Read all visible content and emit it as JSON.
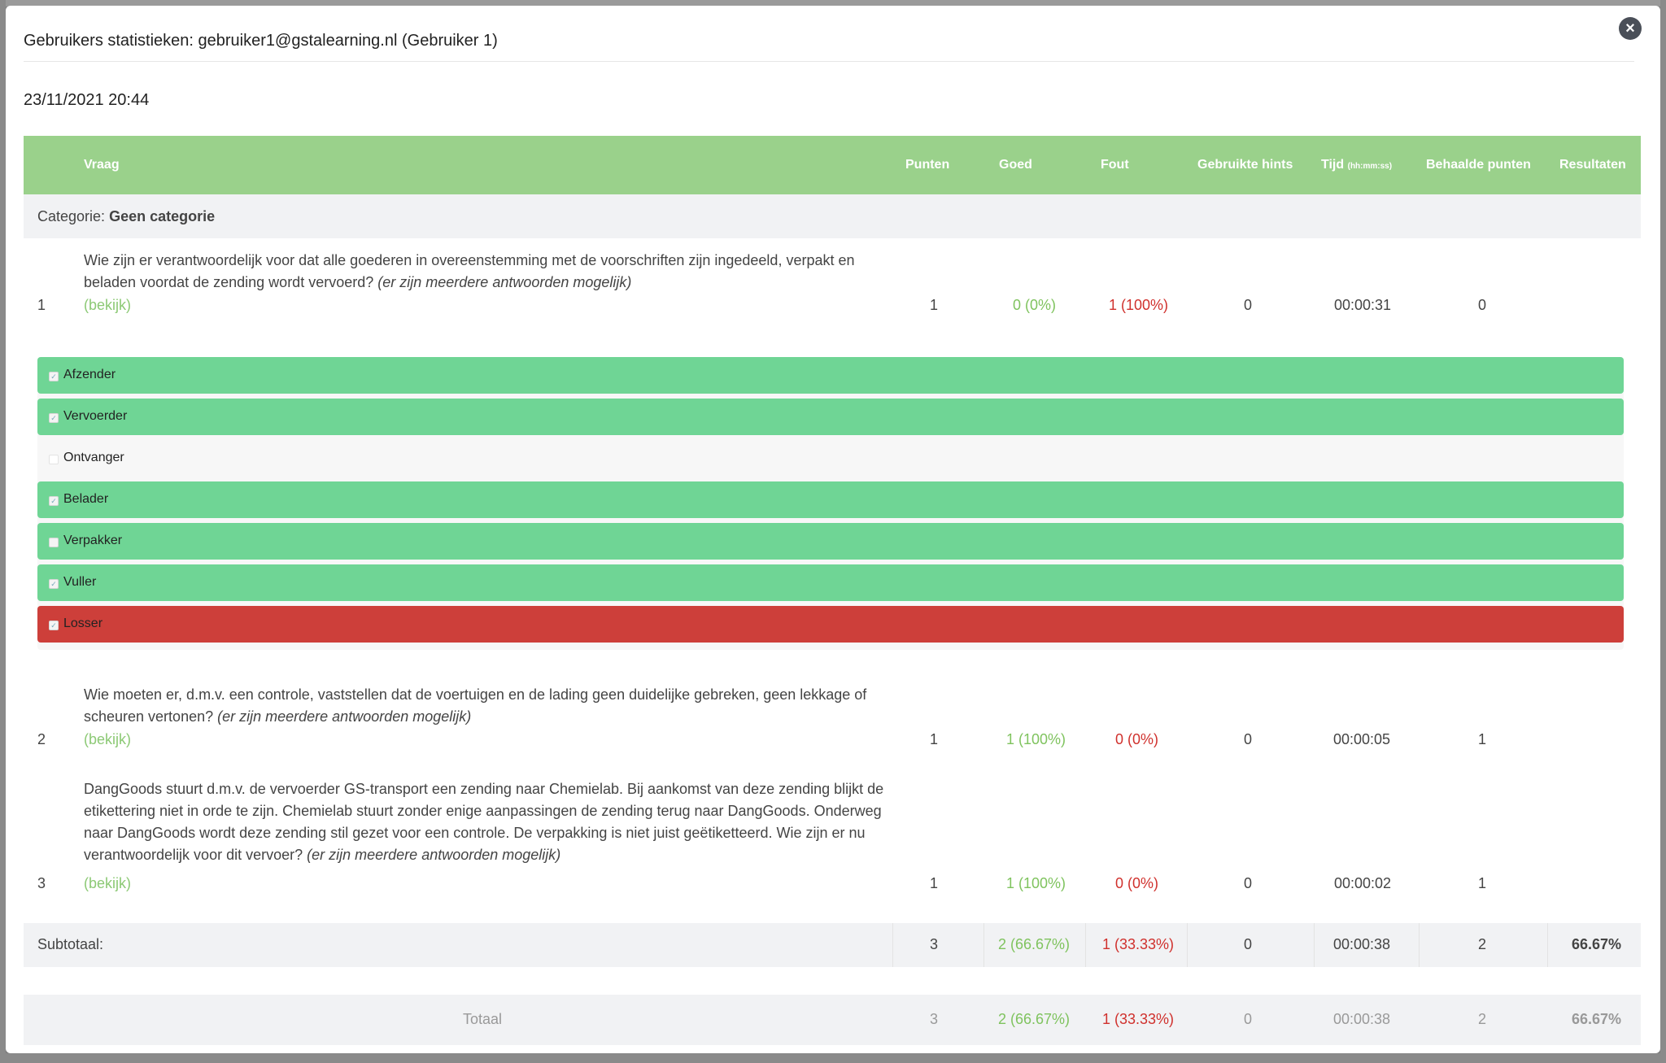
{
  "modal": {
    "title": "Gebruikers statistieken: gebruiker1@gstalearning.nl (Gebruiker 1)",
    "close_icon": "×",
    "date": "23/11/2021 20:44"
  },
  "table": {
    "headers": {
      "vraag": "Vraag",
      "punten": "Punten",
      "goed": "Goed",
      "fout": "Fout",
      "hints": "Gebruikte hints",
      "tijd": "Tijd",
      "tijd_unit": "(hh:mm:ss)",
      "behaald": "Behaalde punten",
      "resultaten": "Resultaten"
    },
    "category_label": "Categorie:",
    "category_name": "Geen categorie",
    "questions": [
      {
        "nr": "1",
        "text": "Wie zijn er verantwoordelijk voor dat alle goederen in overeenstemming met de voorschriften zijn ingedeeld, verpakt en beladen voordat de zending wordt vervoerd?",
        "note": "(er zijn meerdere antwoorden mogelijk)",
        "link": "(bekijk)",
        "punten": "1",
        "goed": "0 (0%)",
        "fout": "1 (100%)",
        "hints": "0",
        "tijd": "00:00:31",
        "behaald": "0",
        "answers": [
          {
            "label": "Afzender",
            "state": "correct",
            "checked": true
          },
          {
            "label": "Vervoerder",
            "state": "correct",
            "checked": true
          },
          {
            "label": "Ontvanger",
            "state": "neutral",
            "checked": false
          },
          {
            "label": "Belader",
            "state": "correct",
            "checked": true
          },
          {
            "label": "Verpakker",
            "state": "correct",
            "checked": false
          },
          {
            "label": "Vuller",
            "state": "correct",
            "checked": true
          },
          {
            "label": "Losser",
            "state": "wrong",
            "checked": true
          }
        ]
      },
      {
        "nr": "2",
        "text": "Wie moeten er, d.m.v. een controle, vaststellen dat de voertuigen en de lading geen duidelijke gebreken, geen lekkage of scheuren vertonen?",
        "note": "(er zijn meerdere antwoorden mogelijk)",
        "link": "(bekijk)",
        "punten": "1",
        "goed": "1 (100%)",
        "fout": "0 (0%)",
        "hints": "0",
        "tijd": "00:00:05",
        "behaald": "1"
      },
      {
        "nr": "3",
        "text": "DangGoods stuurt d.m.v. de vervoerder GS-transport een zending naar Chemielab. Bij aankomst van deze zending blijkt de etikettering niet in orde te zijn. Chemielab stuurt zonder enige aanpassingen de zending terug naar DangGoods. Onderweg naar DangGoods wordt deze zending stil gezet voor een controle. De verpakking is niet juist geëtiketteerd. Wie zijn er nu verantwoordelijk voor dit vervoer?",
        "note": "(er zijn meerdere antwoorden mogelijk)",
        "link": "(bekijk)",
        "punten": "1",
        "goed": "1 (100%)",
        "fout": "0 (0%)",
        "hints": "0",
        "tijd": "00:00:02",
        "behaald": "1"
      }
    ],
    "subtotal": {
      "label": "Subtotaal:",
      "punten": "3",
      "goed": "2 (66.67%)",
      "fout": "1 (33.33%)",
      "hints": "0",
      "tijd": "00:00:38",
      "behaald": "2",
      "resultaat": "66.67%"
    },
    "total": {
      "label": "Totaal",
      "punten": "3",
      "goed": "2 (66.67%)",
      "fout": "1 (33.33%)",
      "hints": "0",
      "tijd": "00:00:38",
      "behaald": "2",
      "resultaat": "66.67%"
    }
  },
  "colors": {
    "header_green": "#9ad18b",
    "answer_correct": "#6fd595",
    "answer_wrong": "#cd3f3a",
    "good_text": "#7fc35e",
    "bad_text": "#d0312d"
  }
}
